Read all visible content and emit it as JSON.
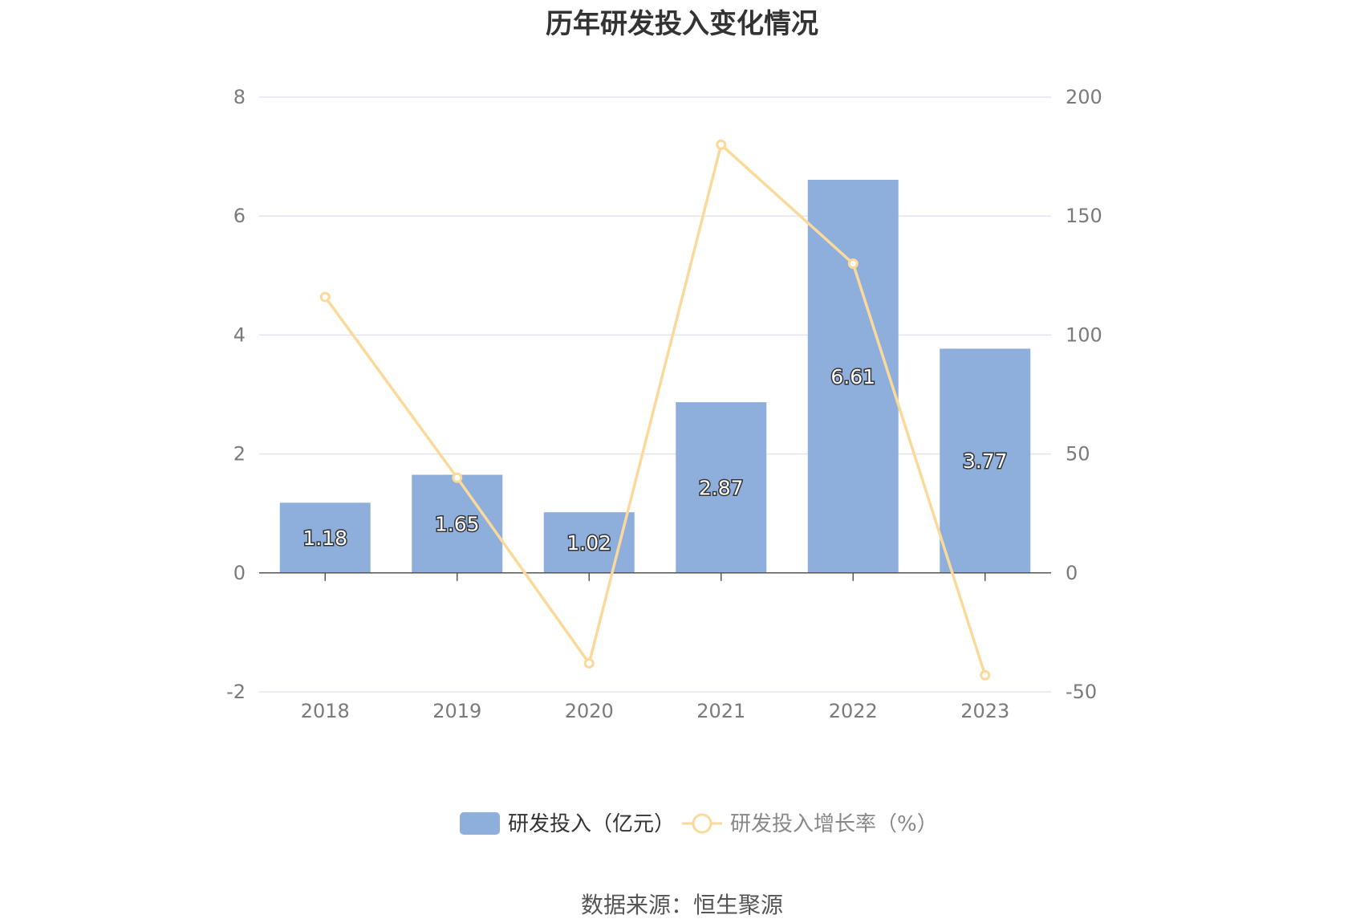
{
  "title": "历年研发投入变化情况",
  "source": "数据来源：恒生聚源",
  "colors": {
    "bar": "#8eaedb",
    "line": "#fbd99a",
    "grid": "#e2e5ef",
    "axis": "#555555"
  },
  "chart_data": {
    "type": "bar",
    "categories": [
      "2018",
      "2019",
      "2020",
      "2021",
      "2022",
      "2023"
    ],
    "series": [
      {
        "name": "研发投入（亿元）",
        "type": "bar",
        "axis": "left",
        "values": [
          1.18,
          1.65,
          1.02,
          2.87,
          6.61,
          3.77
        ]
      },
      {
        "name": "研发投入增长率（%）",
        "type": "line",
        "axis": "right",
        "values": [
          116,
          40,
          -38,
          180,
          130,
          -43
        ]
      }
    ],
    "y_left": {
      "min": -2,
      "max": 8,
      "ticks": [
        -2,
        0,
        2,
        4,
        6,
        8
      ]
    },
    "y_right": {
      "min": -50,
      "max": 200,
      "ticks": [
        -50,
        0,
        50,
        100,
        150,
        200
      ]
    },
    "data_labels": [
      "1.18",
      "1.65",
      "1.02",
      "2.87",
      "6.61",
      "3.77"
    ],
    "grid": true,
    "legend": "bottom-center"
  }
}
